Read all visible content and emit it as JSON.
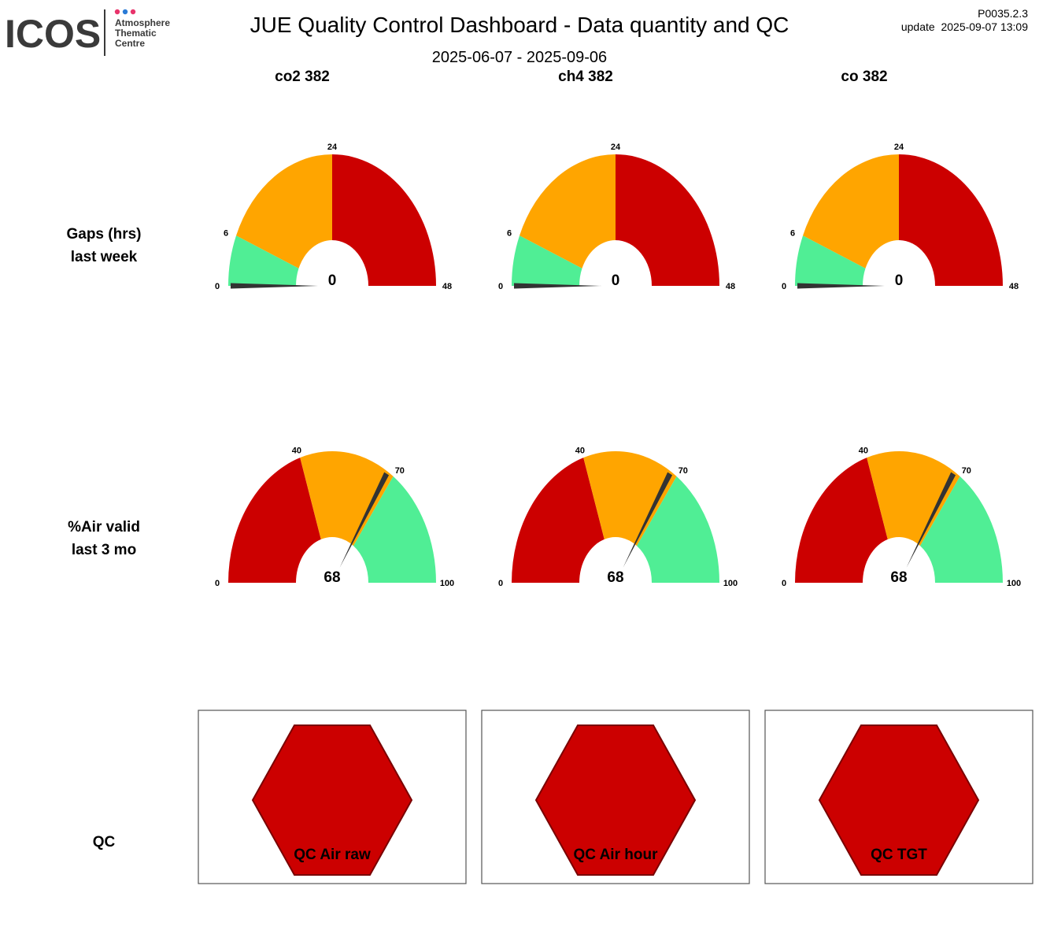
{
  "header": {
    "title": "JUE  Quality Control Dashboard - Data quantity and QC",
    "date_range": "2025-06-07 - 2025-09-06",
    "version": "P0035.2.3",
    "update": "update  2025-09-07 13:09",
    "logo": {
      "wordmark": "ICOS",
      "line1": "Atmosphere",
      "line2": "Thematic",
      "line3": "Centre",
      "dot_colors": [
        "#e8336b",
        "#2a7bd6",
        "#e8336b"
      ]
    }
  },
  "columns": [
    {
      "label": "co2 382"
    },
    {
      "label": "ch4 382"
    },
    {
      "label": "co 382"
    }
  ],
  "rows": {
    "gaps": {
      "line1": "Gaps (hrs)",
      "line2": "last week"
    },
    "air": {
      "line1": "%Air valid",
      "line2": "last 3 mo"
    },
    "qc": {
      "label": "QC"
    }
  },
  "colors": {
    "red": "#cc0000",
    "orange": "#ffa500",
    "green": "#50ee95",
    "needle": "#333333",
    "hex_stroke": "#7a0000"
  },
  "chart_data": [
    {
      "type": "gauge",
      "title": "Gaps (hrs) last week",
      "range": [
        0,
        48
      ],
      "ticks": [
        0,
        6,
        24,
        48
      ],
      "bands": [
        {
          "from": 0,
          "to": 6,
          "color": "green"
        },
        {
          "from": 6,
          "to": 24,
          "color": "orange"
        },
        {
          "from": 24,
          "to": 48,
          "color": "red"
        }
      ],
      "series": [
        {
          "name": "co2 382",
          "value": 0
        },
        {
          "name": "ch4 382",
          "value": 0
        },
        {
          "name": "co 382",
          "value": 0
        }
      ]
    },
    {
      "type": "gauge",
      "title": "%Air valid last 3 mo",
      "range": [
        0,
        100
      ],
      "ticks": [
        0,
        40,
        70,
        100
      ],
      "bands": [
        {
          "from": 0,
          "to": 40,
          "color": "red"
        },
        {
          "from": 40,
          "to": 70,
          "color": "orange"
        },
        {
          "from": 70,
          "to": 100,
          "color": "green"
        }
      ],
      "series": [
        {
          "name": "co2 382",
          "value": 68
        },
        {
          "name": "ch4 382",
          "value": 68
        },
        {
          "name": "co 382",
          "value": 68
        }
      ]
    },
    {
      "type": "status",
      "title": "QC",
      "items": [
        {
          "label": "QC Air raw",
          "status": "red"
        },
        {
          "label": "QC Air hour",
          "status": "red"
        },
        {
          "label": "QC TGT",
          "status": "red"
        }
      ]
    }
  ]
}
